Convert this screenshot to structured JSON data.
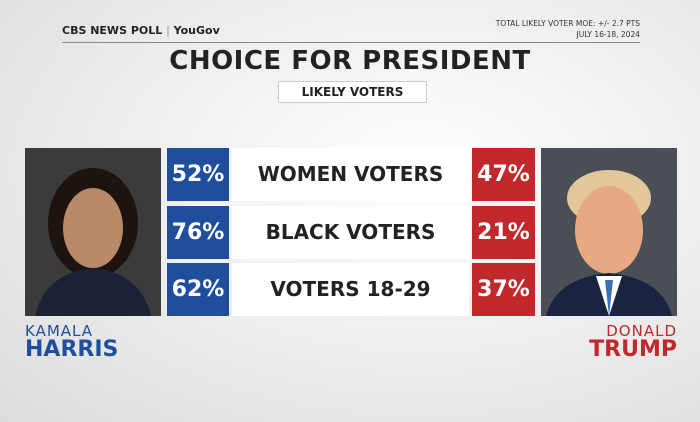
{
  "header": {
    "brand": "CBS NEWS POLL",
    "partner": "YouGov",
    "moe": "TOTAL LIKELY VOTER MOE: +/- 2.7 PTS",
    "dates": "JULY 16-18, 2024"
  },
  "title": "CHOICE FOR PRESIDENT",
  "subtitle": "LIKELY VOTERS",
  "rows": [
    {
      "label": "WOMEN VOTERS",
      "harris": "52%",
      "trump": "47%"
    },
    {
      "label": "BLACK VOTERS",
      "harris": "76%",
      "trump": "21%"
    },
    {
      "label": "VOTERS 18-29",
      "harris": "62%",
      "trump": "37%"
    }
  ],
  "candidates": {
    "left": {
      "first": "KAMALA",
      "last": "HARRIS"
    },
    "right": {
      "first": "DONALD",
      "last": "TRUMP"
    }
  }
}
